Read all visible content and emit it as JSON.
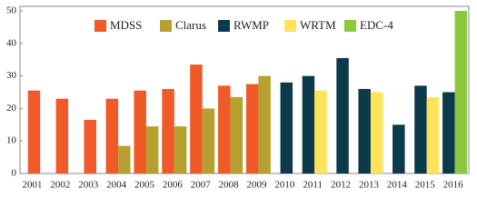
{
  "chart_data": {
    "type": "bar",
    "categories": [
      "2001",
      "2002",
      "2003",
      "2004",
      "2005",
      "2006",
      "2007",
      "2008",
      "2009",
      "2010",
      "2011",
      "2012",
      "2013",
      "2014",
      "2015",
      "2016"
    ],
    "series": [
      {
        "name": "MDSS",
        "color": "#f05a28",
        "values": [
          25.5,
          23,
          16.5,
          23,
          25.5,
          26,
          33.5,
          27,
          27.5,
          null,
          null,
          null,
          null,
          null,
          null,
          null
        ]
      },
      {
        "name": "Clarus",
        "color": "#b5a030",
        "values": [
          null,
          null,
          null,
          8.5,
          14.5,
          14.5,
          20,
          23.5,
          30,
          null,
          null,
          null,
          null,
          null,
          null,
          null
        ]
      },
      {
        "name": "RWMP",
        "color": "#0d3a4a",
        "values": [
          null,
          null,
          null,
          null,
          null,
          null,
          null,
          null,
          null,
          28,
          30,
          35.5,
          26,
          15,
          27,
          25
        ]
      },
      {
        "name": "WRTM",
        "color": "#fde25a",
        "values": [
          null,
          null,
          null,
          null,
          null,
          null,
          null,
          null,
          null,
          null,
          25.5,
          null,
          25,
          null,
          23.5,
          null
        ]
      },
      {
        "name": "EDC-4",
        "color": "#8cc83c",
        "values": [
          null,
          null,
          null,
          null,
          null,
          null,
          null,
          null,
          null,
          null,
          null,
          null,
          null,
          null,
          null,
          50
        ]
      }
    ],
    "ylim": [
      0,
      50
    ],
    "yticks": [
      0,
      10,
      20,
      30,
      40,
      50
    ],
    "grid": false,
    "legend": "top"
  }
}
